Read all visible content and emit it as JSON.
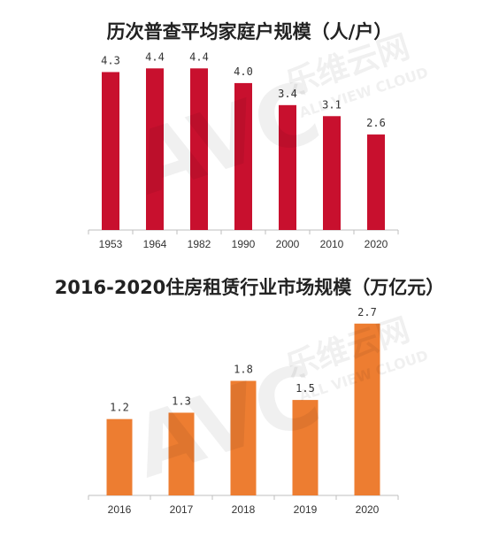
{
  "colors": {
    "chart1_bar": "#c8102e",
    "chart2_bar": "#ed7d31",
    "axis": "#bfbfbf"
  },
  "watermark": {
    "brand_cn": "乐维云网",
    "brand_en": "ALL VIEW CLOUD",
    "logo": "AVC"
  },
  "chart_data": [
    {
      "type": "bar",
      "title": "历次普查平均家庭户规模（人/户）",
      "categories": [
        "1953",
        "1964",
        "1982",
        "1990",
        "2000",
        "2010",
        "2020"
      ],
      "values": [
        4.3,
        4.4,
        4.4,
        4.0,
        3.4,
        3.1,
        2.6
      ],
      "value_labels": [
        "4.3",
        "4.4",
        "4.4",
        "4.0",
        "3.4",
        "3.1",
        "2.6"
      ],
      "ylim": [
        0,
        4.6
      ],
      "grid": false
    },
    {
      "type": "bar",
      "title": "2016-2020住房租赁行业市场规模（万亿元）",
      "categories": [
        "2016",
        "2017",
        "2018",
        "2019",
        "2020"
      ],
      "values": [
        1.2,
        1.3,
        1.8,
        1.5,
        2.7
      ],
      "value_labels": [
        "1.2",
        "1.3",
        "1.8",
        "1.5",
        "2.7"
      ],
      "ylim": [
        0,
        2.85
      ],
      "grid": false
    }
  ]
}
